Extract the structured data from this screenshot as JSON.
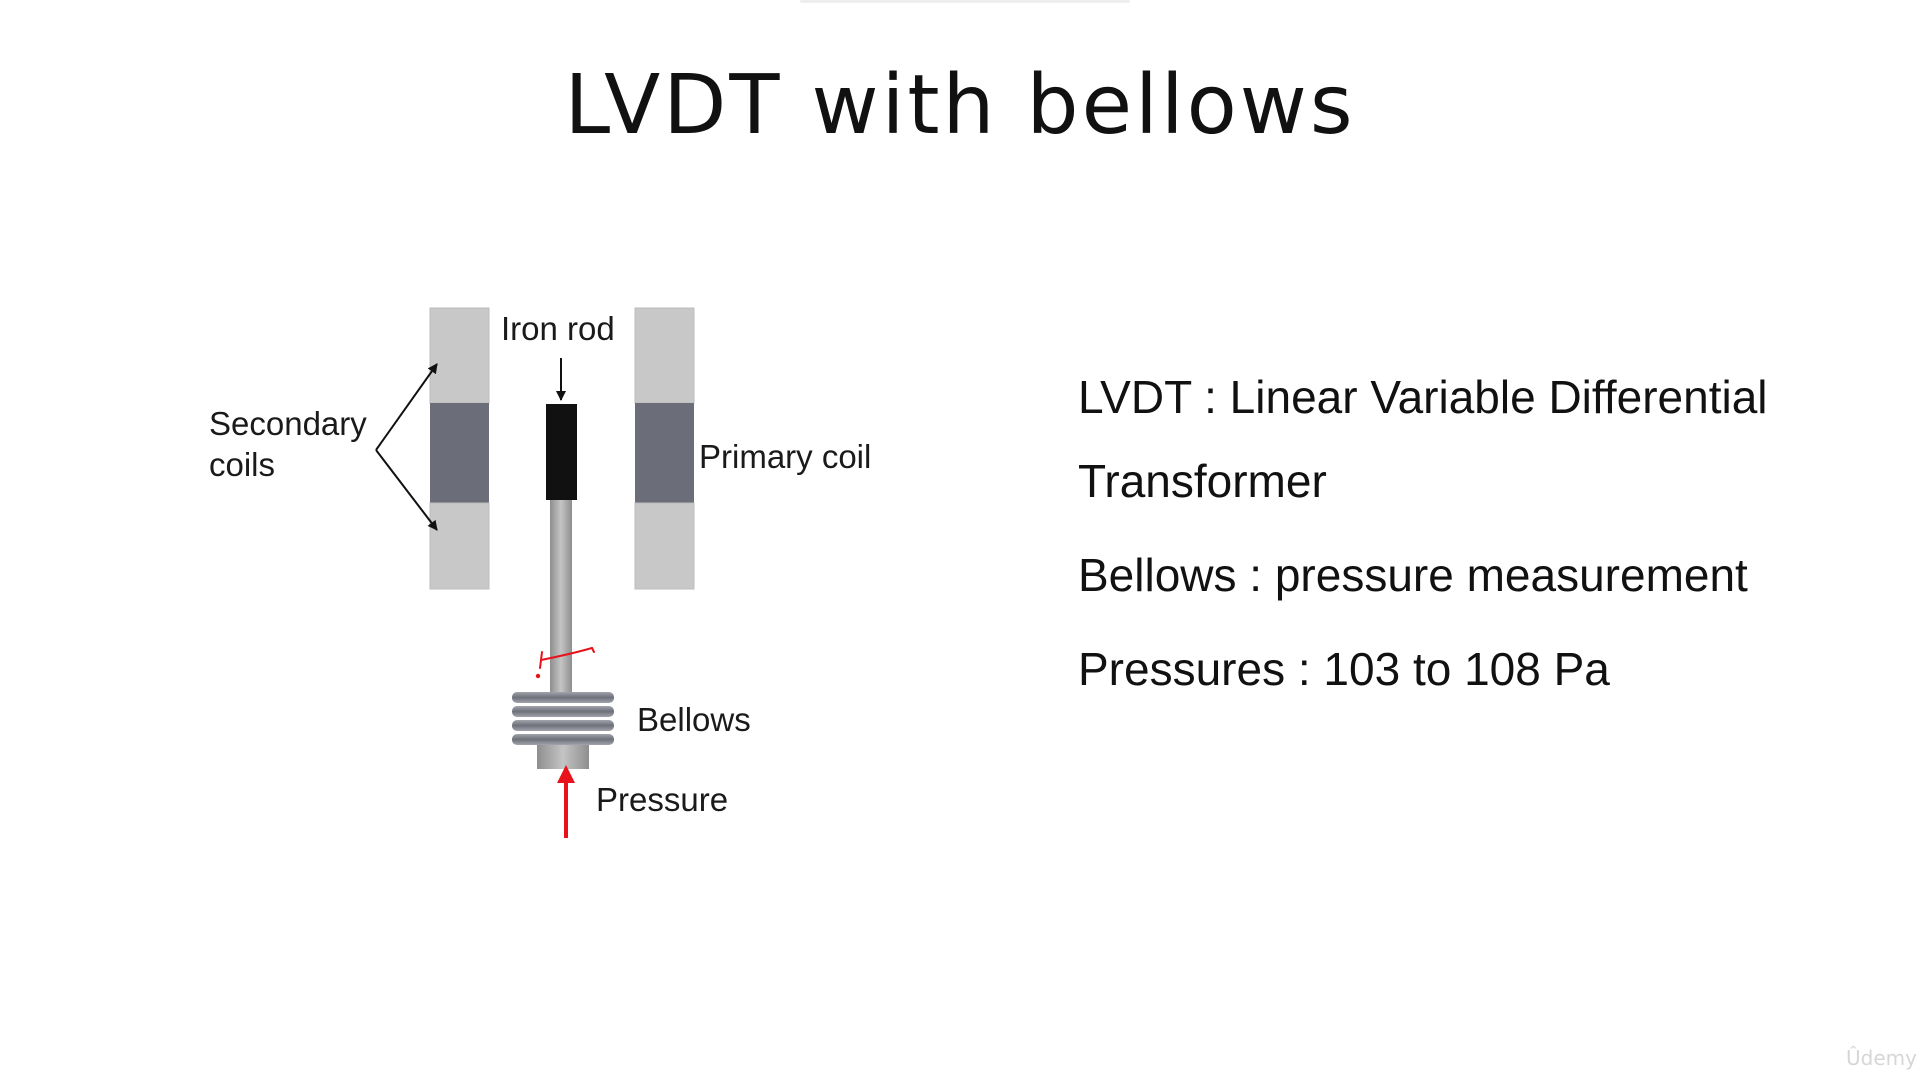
{
  "slide": {
    "title": "LVDT with bellows"
  },
  "diagram": {
    "labels": {
      "iron_rod": "Iron rod",
      "secondary_line1": "Secondary",
      "secondary_line2": "coils",
      "primary_coil": "Primary coil",
      "bellows": "Bellows",
      "pressure": "Pressure"
    },
    "colors": {
      "coil_light": "#c8c8c8",
      "coil_dark": "#6b6d78",
      "rod_black": "#111111",
      "rod_gray": "#a9a9a9",
      "bellows": "#8a8c94",
      "pressure_arrow": "#e8121b",
      "annotation": "#e8121b"
    }
  },
  "text": {
    "line1": "LVDT : Linear Variable Differential Transformer",
    "line2": "Bellows : pressure measurement",
    "line3": "Pressures : 103 to 108 Pa"
  },
  "watermark": "Ûdemy"
}
